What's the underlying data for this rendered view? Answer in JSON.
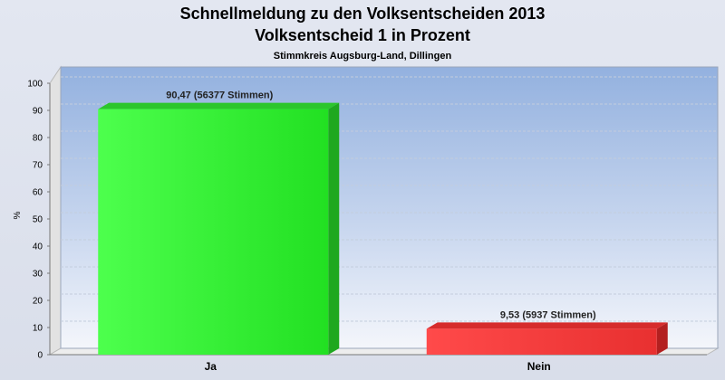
{
  "chart_data": {
    "type": "bar",
    "title": "Schnellmeldung zu den Volksentscheiden 2013",
    "title_line2": "Volksentscheid 1 in Prozent",
    "subtitle": "Stimmkreis Augsburg-Land, Dillingen",
    "ylabel": "%",
    "xlabel": "",
    "ylim": [
      0,
      100
    ],
    "yticks": [
      0,
      10,
      20,
      30,
      40,
      50,
      60,
      70,
      80,
      90,
      100
    ],
    "grid": true,
    "categories": [
      "Ja",
      "Nein"
    ],
    "values": [
      90.47,
      9.53
    ],
    "data_labels": [
      "90,47 (56377 Stimmen)",
      "9,53 (5937 Stimmen)"
    ],
    "colors": [
      "#33ee33",
      "#ee3333"
    ]
  }
}
